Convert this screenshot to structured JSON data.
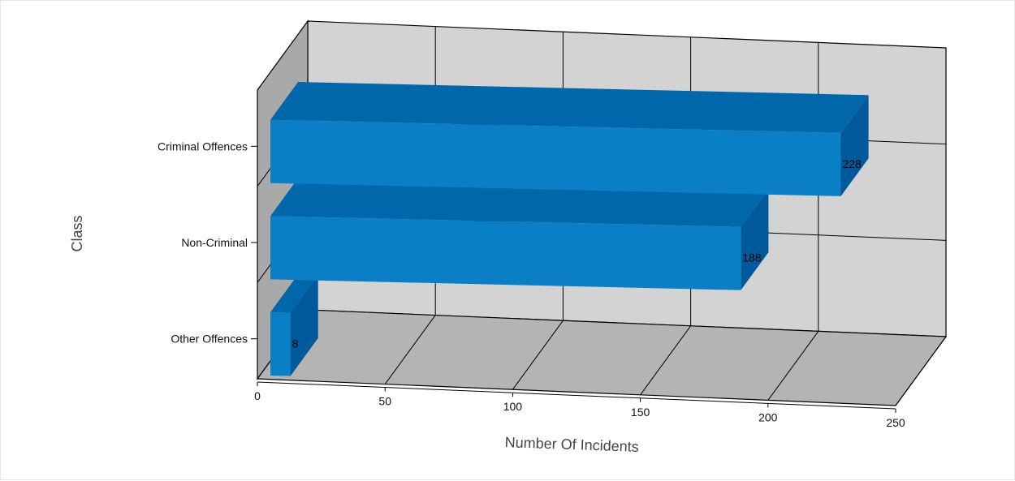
{
  "chart_data": {
    "type": "bar",
    "orientation": "horizontal",
    "rendering": "3d",
    "categories": [
      "Criminal Offences",
      "Non-Criminal",
      "Other Offences"
    ],
    "values": [
      228,
      188,
      8
    ],
    "data_labels": [
      "228",
      "188",
      "8"
    ],
    "title": "",
    "xlabel": "Number Of Incidents",
    "ylabel": "Class",
    "xlim": [
      0,
      250
    ],
    "x_ticks": [
      0,
      50,
      100,
      150,
      200,
      250
    ],
    "x_tick_labels": [
      "0",
      "50",
      "100",
      "150",
      "200",
      "250"
    ],
    "grid": true,
    "legend": "none",
    "colors": {
      "bar_front": "#0a7fc6",
      "bar_top": "#0068aa",
      "bar_side": "#00599a",
      "back_wall": "#d3d3d3",
      "floor": "#b4b4b4",
      "left_wall": "#a9a9a9",
      "gridline": "#000000"
    }
  }
}
